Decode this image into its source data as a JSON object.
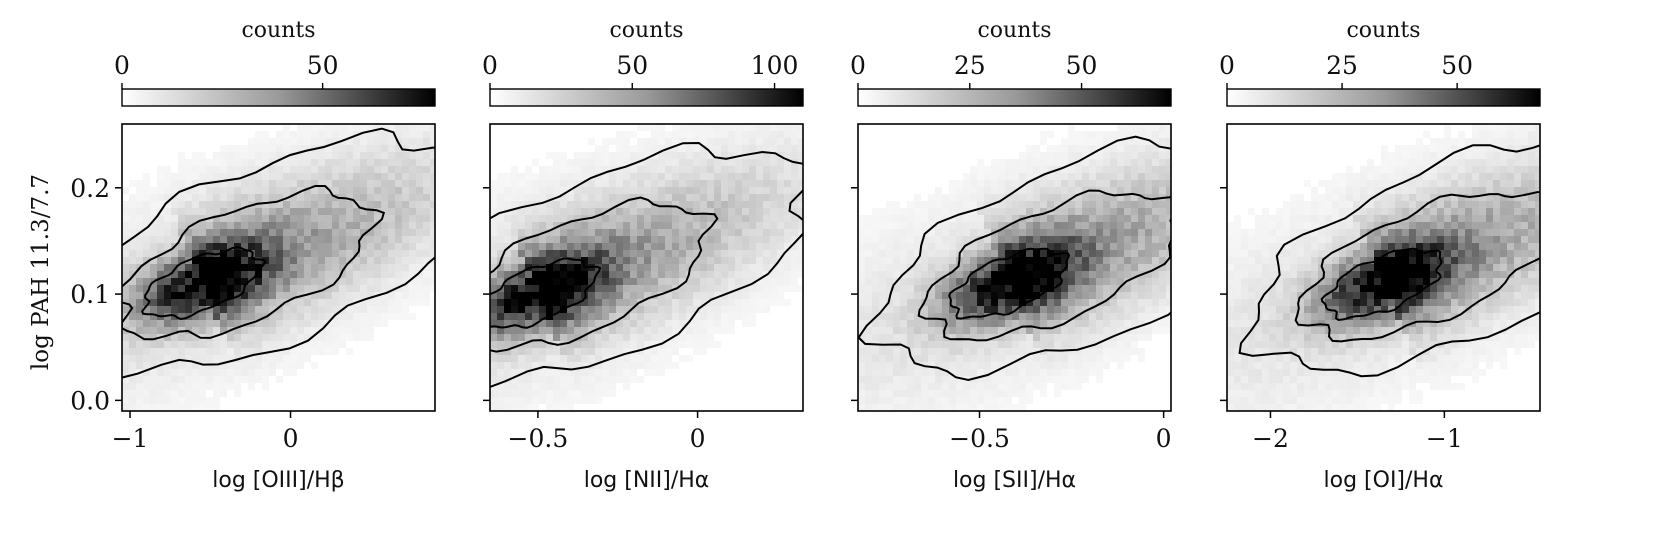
{
  "figure": {
    "ylabel": "log PAH 11.3/7.7",
    "colorbar_label": "counts"
  },
  "chart_data": [
    {
      "type": "heatmap",
      "xlabel": "log [OIII]/Hβ",
      "ylabel": "log PAH 11.3/7.7",
      "xlim": [
        -1.05,
        0.9
      ],
      "ylim": [
        -0.01,
        0.26
      ],
      "xticks": [
        -1,
        0
      ],
      "yticks": [
        0.0,
        0.1,
        0.2
      ],
      "colorbar": {
        "label": "counts",
        "range": [
          0,
          78
        ],
        "ticks": [
          0,
          50
        ]
      },
      "colormap": [
        "#ffffff",
        "#000000"
      ],
      "density_core": {
        "x": -0.55,
        "y": 0.11,
        "peak_counts": 78
      },
      "contours": true
    },
    {
      "type": "heatmap",
      "xlabel": "log [NII]/Hα",
      "xlim": [
        -0.65,
        0.33
      ],
      "ylim": [
        -0.01,
        0.26
      ],
      "xticks": [
        -0.5,
        0.0
      ],
      "yticks": [
        0.0,
        0.1,
        0.2
      ],
      "colorbar": {
        "label": "counts",
        "range": [
          0,
          110
        ],
        "ticks": [
          0,
          50,
          100
        ]
      },
      "colormap": [
        "#ffffff",
        "#000000"
      ],
      "density_core": {
        "x": -0.5,
        "y": 0.1,
        "peak_counts": 110
      },
      "contours": true
    },
    {
      "type": "heatmap",
      "xlabel": "log [SII]/Hα",
      "xlim": [
        -0.83,
        0.02
      ],
      "ylim": [
        -0.01,
        0.26
      ],
      "xticks": [
        -0.5,
        0.0
      ],
      "yticks": [
        0.0,
        0.1,
        0.2
      ],
      "colorbar": {
        "label": "counts",
        "range": [
          0,
          70
        ],
        "ticks": [
          0,
          25,
          50
        ]
      },
      "colormap": [
        "#ffffff",
        "#000000"
      ],
      "density_core": {
        "x": -0.42,
        "y": 0.11,
        "peak_counts": 70
      },
      "contours": true
    },
    {
      "type": "heatmap",
      "xlabel": "log [OI]/Hα",
      "xlim": [
        -2.25,
        -0.45
      ],
      "ylim": [
        -0.01,
        0.26
      ],
      "xticks": [
        -2,
        -1
      ],
      "yticks": [
        0.0,
        0.1,
        0.2
      ],
      "colorbar": {
        "label": "counts",
        "range": [
          0,
          68
        ],
        "ticks": [
          0,
          25,
          50
        ]
      },
      "colormap": [
        "#ffffff",
        "#000000"
      ],
      "density_core": {
        "x": -1.35,
        "y": 0.11,
        "peak_counts": 68
      },
      "contours": true
    }
  ]
}
